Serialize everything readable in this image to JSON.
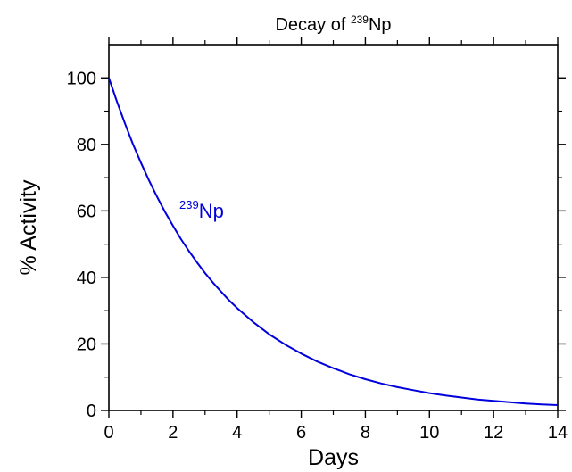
{
  "chart_data": {
    "type": "line",
    "title": {
      "prefix": "Decay of ",
      "superscript": "239",
      "suffix": "Np"
    },
    "xlabel": "Days",
    "ylabel": "% Activity",
    "xlim": [
      0,
      14
    ],
    "ylim": [
      0,
      110
    ],
    "x_ticks": [
      0,
      2,
      4,
      6,
      8,
      10,
      12,
      14
    ],
    "y_ticks": [
      0,
      20,
      40,
      60,
      80,
      100
    ],
    "grid": false,
    "series": [
      {
        "label": {
          "superscript": "239",
          "text": "Np"
        },
        "color": "#0000dd",
        "x": [
          0,
          0.25,
          0.5,
          0.75,
          1,
          1.25,
          1.5,
          1.75,
          2,
          2.25,
          2.5,
          2.75,
          3,
          3.25,
          3.5,
          3.75,
          4,
          4.5,
          5,
          5.5,
          6,
          6.5,
          7,
          7.5,
          8,
          8.5,
          9,
          9.5,
          10,
          10.5,
          11,
          11.5,
          12,
          12.5,
          13,
          13.5,
          14
        ],
        "y": [
          100,
          92.9,
          86.3,
          80.1,
          74.5,
          69.2,
          64.3,
          59.7,
          55.5,
          51.5,
          47.9,
          44.5,
          41.3,
          38.4,
          35.7,
          33.1,
          30.8,
          26.6,
          22.9,
          19.8,
          17.1,
          14.7,
          12.7,
          10.9,
          9.4,
          8.1,
          7.0,
          6.1,
          5.2,
          4.5,
          3.9,
          3.3,
          2.9,
          2.5,
          2.1,
          1.8,
          1.6
        ]
      }
    ]
  }
}
